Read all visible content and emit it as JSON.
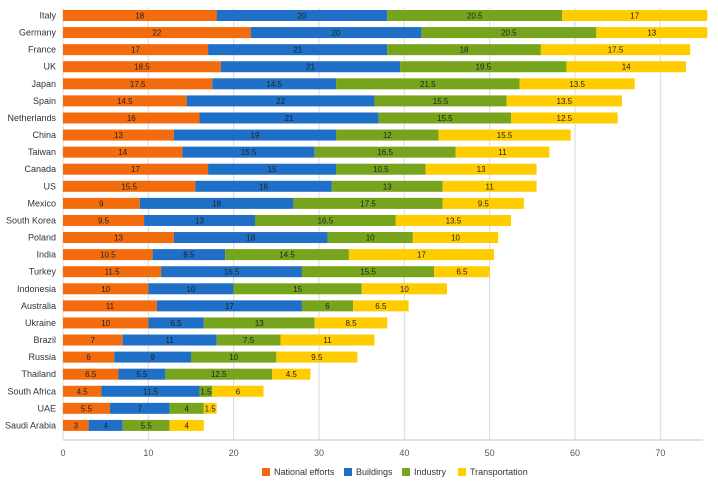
{
  "chart_data": {
    "type": "bar",
    "orientation": "horizontal",
    "stacked": true,
    "categories": [
      "Italy",
      "Germany",
      "France",
      "UK",
      "Japan",
      "Spain",
      "Netherlands",
      "China",
      "Taiwan",
      "Canada",
      "US",
      "Mexico",
      "South Korea",
      "Poland",
      "India",
      "Turkey",
      "Indonesia",
      "Australia",
      "Ukraine",
      "Brazil",
      "Russia",
      "Thailand",
      "South Africa",
      "UAE",
      "Saudi Arabia"
    ],
    "series": [
      {
        "name": "National efforts",
        "color": "#F26C0D",
        "values": [
          18,
          22,
          17,
          18.5,
          17.5,
          14.5,
          16,
          13,
          14,
          17,
          15.5,
          9,
          9.5,
          13,
          10.5,
          11.5,
          10,
          11,
          10,
          7,
          6,
          6.5,
          4.5,
          5.5,
          3
        ]
      },
      {
        "name": "Buildings",
        "color": "#1F6FC6",
        "values": [
          20,
          20,
          21,
          21,
          14.5,
          22,
          21,
          19,
          15.5,
          15,
          16,
          18,
          13,
          18,
          8.5,
          16.5,
          10,
          17,
          6.5,
          11,
          9,
          5.5,
          11.5,
          7,
          4
        ]
      },
      {
        "name": "Industry",
        "color": "#76A41C",
        "values": [
          20.5,
          20.5,
          18,
          19.5,
          21.5,
          15.5,
          15.5,
          12,
          16.5,
          10.5,
          13,
          17.5,
          16.5,
          10,
          14.5,
          15.5,
          15,
          6,
          13,
          7.5,
          10,
          12.5,
          1.5,
          4,
          5.5
        ]
      },
      {
        "name": "Transportation",
        "color": "#FFCC00",
        "values": [
          17,
          13,
          17.5,
          14,
          13.5,
          13.5,
          12.5,
          15.5,
          11,
          13,
          11,
          9.5,
          13.5,
          10,
          17,
          6.5,
          10,
          6.5,
          8.5,
          11,
          9.5,
          4.5,
          6,
          1.5,
          4
        ]
      }
    ],
    "xlim": [
      0,
      75
    ],
    "xticks": [
      0,
      10,
      20,
      30,
      40,
      50,
      60,
      70
    ],
    "title": "",
    "xlabel": "",
    "ylabel": "",
    "grid": "vertical",
    "legend_position": "bottom"
  }
}
